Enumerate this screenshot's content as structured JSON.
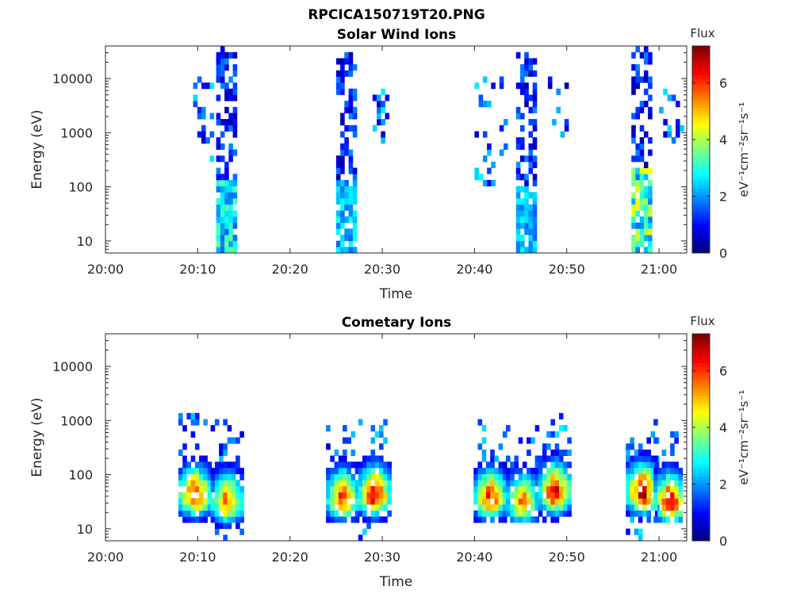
{
  "figure_title": "RPCICA150719T20.PNG",
  "chart_data": [
    {
      "type": "heatmap",
      "title": "Solar Wind Ions",
      "xlabel": "Time",
      "ylabel": "Energy (eV)",
      "x_tick_labels": [
        "20:00",
        "20:10",
        "20:20",
        "20:30",
        "20:40",
        "20:50",
        "21:00"
      ],
      "y_tick_labels": [
        "10",
        "100",
        "1000",
        "10000"
      ],
      "xlim": [
        "20:00",
        "21:03"
      ],
      "ylim_log": [
        6,
        40000
      ],
      "y_scale": "log",
      "colorbar": {
        "label": "Flux",
        "units": "eV⁻¹cm⁻²sr⁻¹s⁻¹",
        "ticks": [
          "0",
          "2",
          "4",
          "6"
        ],
        "range": [
          0,
          7.3
        ],
        "colormap": "jet"
      },
      "bursts": [
        {
          "time": "20:13",
          "emin": 6,
          "emax": 38000,
          "peak_flux": 3.5,
          "core_emax": 150
        },
        {
          "time": "20:26",
          "emin": 6,
          "emax": 32000,
          "peak_flux": 3.0,
          "core_emax": 120
        },
        {
          "time": "20:45.5",
          "emin": 6,
          "emax": 33000,
          "peak_flux": 2.8,
          "core_emax": 100
        },
        {
          "time": "20:58",
          "emin": 6,
          "emax": 38000,
          "peak_flux": 4.6,
          "core_emax": 250
        }
      ],
      "scatter_bands": [
        {
          "time_start": "20:09.5",
          "time_end": "20:11.5",
          "emin": 250,
          "emax": 15000
        },
        {
          "time_start": "20:28.5",
          "time_end": "20:30.5",
          "emin": 700,
          "emax": 16000
        },
        {
          "time_start": "20:40",
          "time_end": "20:43.5",
          "emin": 100,
          "emax": 10000
        },
        {
          "time_start": "20:47.5",
          "time_end": "20:50",
          "emin": 700,
          "emax": 12000
        },
        {
          "time_start": "21:00",
          "time_end": "21:03",
          "emin": 700,
          "emax": 7000
        }
      ]
    },
    {
      "type": "heatmap",
      "title": "Cometary Ions",
      "xlabel": "Time",
      "ylabel": "Energy (eV)",
      "x_tick_labels": [
        "20:00",
        "20:10",
        "20:20",
        "20:30",
        "20:40",
        "20:50",
        "21:00"
      ],
      "y_tick_labels": [
        "10",
        "100",
        "1000",
        "10000"
      ],
      "xlim": [
        "20:00",
        "21:03"
      ],
      "ylim_log": [
        6,
        40000
      ],
      "y_scale": "log",
      "colorbar": {
        "label": "Flux",
        "units": "eV⁻¹cm⁻²sr⁻¹s⁻¹",
        "ticks": [
          "0",
          "2",
          "4",
          "6"
        ],
        "range": [
          0,
          7.3
        ],
        "colormap": "jet"
      },
      "bursts": [
        {
          "time": "20:09.5",
          "emin": 12,
          "emax": 1300,
          "peak_flux": 6.8,
          "core_energy": 40
        },
        {
          "time": "20:13",
          "emin": 6,
          "emax": 1400,
          "peak_flux": 6.0,
          "core_energy": 30
        },
        {
          "time": "20:25.5",
          "emin": 12,
          "emax": 900,
          "peak_flux": 6.2,
          "core_energy": 35
        },
        {
          "time": "20:29",
          "emin": 6,
          "emax": 1200,
          "peak_flux": 6.9,
          "core_energy": 40
        },
        {
          "time": "20:41.5",
          "emin": 12,
          "emax": 1100,
          "peak_flux": 6.4,
          "core_energy": 35
        },
        {
          "time": "20:45",
          "emin": 12,
          "emax": 900,
          "peak_flux": 5.8,
          "core_energy": 30
        },
        {
          "time": "20:48.5",
          "emin": 12,
          "emax": 1400,
          "peak_flux": 6.9,
          "core_energy": 45
        },
        {
          "time": "20:58",
          "emin": 6,
          "emax": 600,
          "peak_flux": 7.0,
          "core_energy": 45
        },
        {
          "time": "21:01",
          "emin": 12,
          "emax": 1100,
          "peak_flux": 6.8,
          "core_energy": 30
        }
      ]
    }
  ]
}
